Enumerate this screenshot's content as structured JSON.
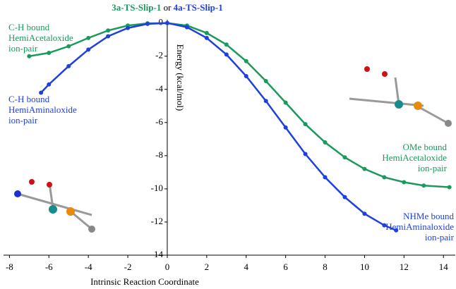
{
  "chart_data": {
    "type": "line",
    "title": [
      "3a-TS-Slip-1",
      "or",
      "4a-TS-Slip-1"
    ],
    "xlabel": "Intrinsic Reaction Coordinate",
    "ylabel": "Energy (kcal/mol)",
    "xlim": [
      -8.3,
      14.6
    ],
    "ylim": [
      -14,
      0.2
    ],
    "xticks": [
      -8,
      -6,
      -4,
      -2,
      0,
      2,
      4,
      6,
      8,
      10,
      12,
      14
    ],
    "yticks": [
      -14,
      -12,
      -10,
      -8,
      -6,
      -4,
      -2,
      0
    ],
    "series": [
      {
        "name": "3a-TS-Slip-1",
        "color": "#1a9a5c",
        "x": [
          -7,
          -6,
          -5,
          -4,
          -3,
          -2,
          -1,
          0,
          1,
          2,
          3,
          4,
          5,
          6,
          7,
          8,
          9,
          10,
          11,
          12,
          13,
          14.3
        ],
        "values": [
          -2.0,
          -1.8,
          -1.4,
          -0.9,
          -0.45,
          -0.15,
          -0.02,
          0,
          -0.15,
          -0.6,
          -1.3,
          -2.3,
          -3.5,
          -4.8,
          -6.1,
          -7.2,
          -8.1,
          -8.8,
          -9.3,
          -9.6,
          -9.8,
          -9.9
        ]
      },
      {
        "name": "4a-TS-Slip-1",
        "color": "#1f3fe0",
        "x": [
          -6.4,
          -6,
          -5,
          -4,
          -3,
          -2,
          -1,
          0,
          1,
          2,
          3,
          4,
          5,
          6,
          7,
          8,
          9,
          10,
          11,
          11.6
        ],
        "values": [
          -4.2,
          -3.7,
          -2.6,
          -1.6,
          -0.8,
          -0.3,
          -0.05,
          0,
          -0.25,
          -0.9,
          -1.9,
          -3.2,
          -4.7,
          -6.3,
          -7.9,
          -9.3,
          -10.5,
          -11.5,
          -12.2,
          -12.5
        ]
      }
    ],
    "annotations": [
      {
        "lines": [
          "C-H bound",
          "HemiAcetaloxide",
          "ion-pair"
        ],
        "color": "#1a9a5c"
      },
      {
        "lines": [
          "C-H bound",
          "HemiAminaloxide",
          "ion-pair"
        ],
        "color": "#1f3fe0"
      },
      {
        "lines": [
          "OMe bound",
          "HemiAcetaloxide",
          "ion-pair"
        ],
        "color": "#1a9a5c"
      },
      {
        "lines": [
          "NHMe bound",
          "HemiAminaloxide",
          "ion-pair"
        ],
        "color": "#1f3fe0"
      }
    ]
  }
}
